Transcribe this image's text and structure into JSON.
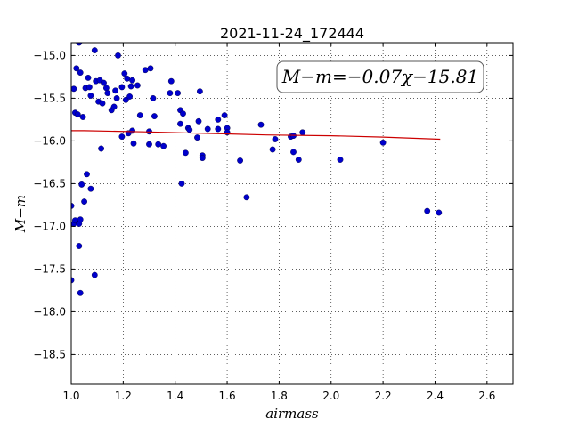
{
  "chart_data": {
    "type": "scatter",
    "title": "2021-11-24_172444",
    "xlabel": "airmass",
    "ylabel": "M−m",
    "xlim": [
      1.0,
      2.7
    ],
    "ylim": [
      -18.85,
      -14.85
    ],
    "y_inverted": true,
    "grid": true,
    "x_ticks": [
      1.0,
      1.2,
      1.4,
      1.6,
      1.8,
      2.0,
      2.2,
      2.4,
      2.6
    ],
    "x_tick_labels": [
      "1.0",
      "1.2",
      "1.4",
      "1.6",
      "1.8",
      "2.0",
      "2.2",
      "2.4",
      "2.6"
    ],
    "y_ticks": [
      -15.0,
      -15.5,
      -16.0,
      -16.5,
      -17.0,
      -17.5,
      -18.0,
      -18.5
    ],
    "y_tick_labels": [
      "−15.0",
      "−15.5",
      "−16.0",
      "−16.5",
      "−17.0",
      "−17.5",
      "−18.0",
      "−18.5"
    ],
    "annotation": "M−m=−0.07χ−15.81",
    "series": [
      {
        "kind": "scatter",
        "color": "#0000cc",
        "points": [
          [
            1.01,
            -15.39
          ],
          [
            1.015,
            -15.67
          ],
          [
            1.02,
            -15.15
          ],
          [
            1.025,
            -15.69
          ],
          [
            1.035,
            -15.2
          ],
          [
            1.045,
            -15.72
          ],
          [
            1.055,
            -15.38
          ],
          [
            1.065,
            -15.26
          ],
          [
            1.07,
            -15.37
          ],
          [
            1.075,
            -15.47
          ],
          [
            1.09,
            -14.94
          ],
          [
            1.095,
            -15.3
          ],
          [
            1.105,
            -15.54
          ],
          [
            1.11,
            -15.29
          ],
          [
            1.12,
            -15.56
          ],
          [
            1.125,
            -15.32
          ],
          [
            1.135,
            -15.38
          ],
          [
            1.14,
            -15.44
          ],
          [
            1.155,
            -15.64
          ],
          [
            1.165,
            -15.6
          ],
          [
            1.17,
            -15.41
          ],
          [
            1.175,
            -15.5
          ],
          [
            1.18,
            -15.0
          ],
          [
            1.195,
            -15.37
          ],
          [
            1.205,
            -15.21
          ],
          [
            1.21,
            -15.52
          ],
          [
            1.215,
            -15.27
          ],
          [
            1.225,
            -15.48
          ],
          [
            1.23,
            -15.36
          ],
          [
            1.235,
            -15.29
          ],
          [
            1.22,
            -15.91
          ],
          [
            1.235,
            -15.88
          ],
          [
            1.24,
            -16.03
          ],
          [
            1.195,
            -15.95
          ],
          [
            1.255,
            -15.35
          ],
          [
            1.265,
            -15.7
          ],
          [
            1.285,
            -15.17
          ],
          [
            1.305,
            -15.15
          ],
          [
            1.315,
            -15.5
          ],
          [
            1.32,
            -15.71
          ],
          [
            1.3,
            -15.89
          ],
          [
            1.3,
            -16.04
          ],
          [
            1.335,
            -16.04
          ],
          [
            1.355,
            -16.06
          ],
          [
            1.385,
            -15.3
          ],
          [
            1.38,
            -15.44
          ],
          [
            1.41,
            -15.44
          ],
          [
            1.42,
            -15.64
          ],
          [
            1.42,
            -15.8
          ],
          [
            1.43,
            -15.68
          ],
          [
            1.425,
            -16.5
          ],
          [
            1.44,
            -16.14
          ],
          [
            1.45,
            -15.85
          ],
          [
            1.455,
            -15.87
          ],
          [
            1.485,
            -15.96
          ],
          [
            1.49,
            -15.77
          ],
          [
            1.495,
            -15.42
          ],
          [
            1.505,
            -16.17
          ],
          [
            1.505,
            -16.2
          ],
          [
            1.525,
            -15.86
          ],
          [
            1.565,
            -15.75
          ],
          [
            1.565,
            -15.86
          ],
          [
            1.59,
            -15.7
          ],
          [
            1.6,
            -15.85
          ],
          [
            1.6,
            -15.9
          ],
          [
            1.65,
            -16.23
          ],
          [
            1.675,
            -16.66
          ],
          [
            1.73,
            -15.81
          ],
          [
            1.775,
            -16.1
          ],
          [
            1.785,
            -15.98
          ],
          [
            1.845,
            -15.95
          ],
          [
            1.855,
            -15.94
          ],
          [
            1.855,
            -16.13
          ],
          [
            1.875,
            -16.22
          ],
          [
            1.89,
            -15.9
          ],
          [
            2.035,
            -16.22
          ],
          [
            2.2,
            -16.02
          ],
          [
            2.37,
            -16.82
          ],
          [
            2.415,
            -16.84
          ],
          [
            1.0,
            -16.76
          ],
          [
            1.0,
            -17.63
          ],
          [
            1.01,
            -16.97
          ],
          [
            1.015,
            -16.93
          ],
          [
            1.03,
            -16.97
          ],
          [
            1.03,
            -17.23
          ],
          [
            1.035,
            -16.92
          ],
          [
            1.035,
            -17.78
          ],
          [
            1.04,
            -16.51
          ],
          [
            1.05,
            -16.71
          ],
          [
            1.06,
            -16.39
          ],
          [
            1.075,
            -16.56
          ],
          [
            1.09,
            -17.57
          ],
          [
            1.115,
            -16.09
          ],
          [
            1.03,
            -14.85
          ]
        ]
      },
      {
        "kind": "line",
        "color": "#cc0000",
        "points": [
          [
            1.0,
            -15.88
          ],
          [
            1.05,
            -15.88
          ],
          [
            1.3,
            -15.895
          ],
          [
            1.5,
            -15.91
          ],
          [
            1.75,
            -15.93
          ],
          [
            2.0,
            -15.94
          ],
          [
            2.2,
            -15.955
          ],
          [
            2.42,
            -15.98
          ]
        ]
      }
    ]
  }
}
